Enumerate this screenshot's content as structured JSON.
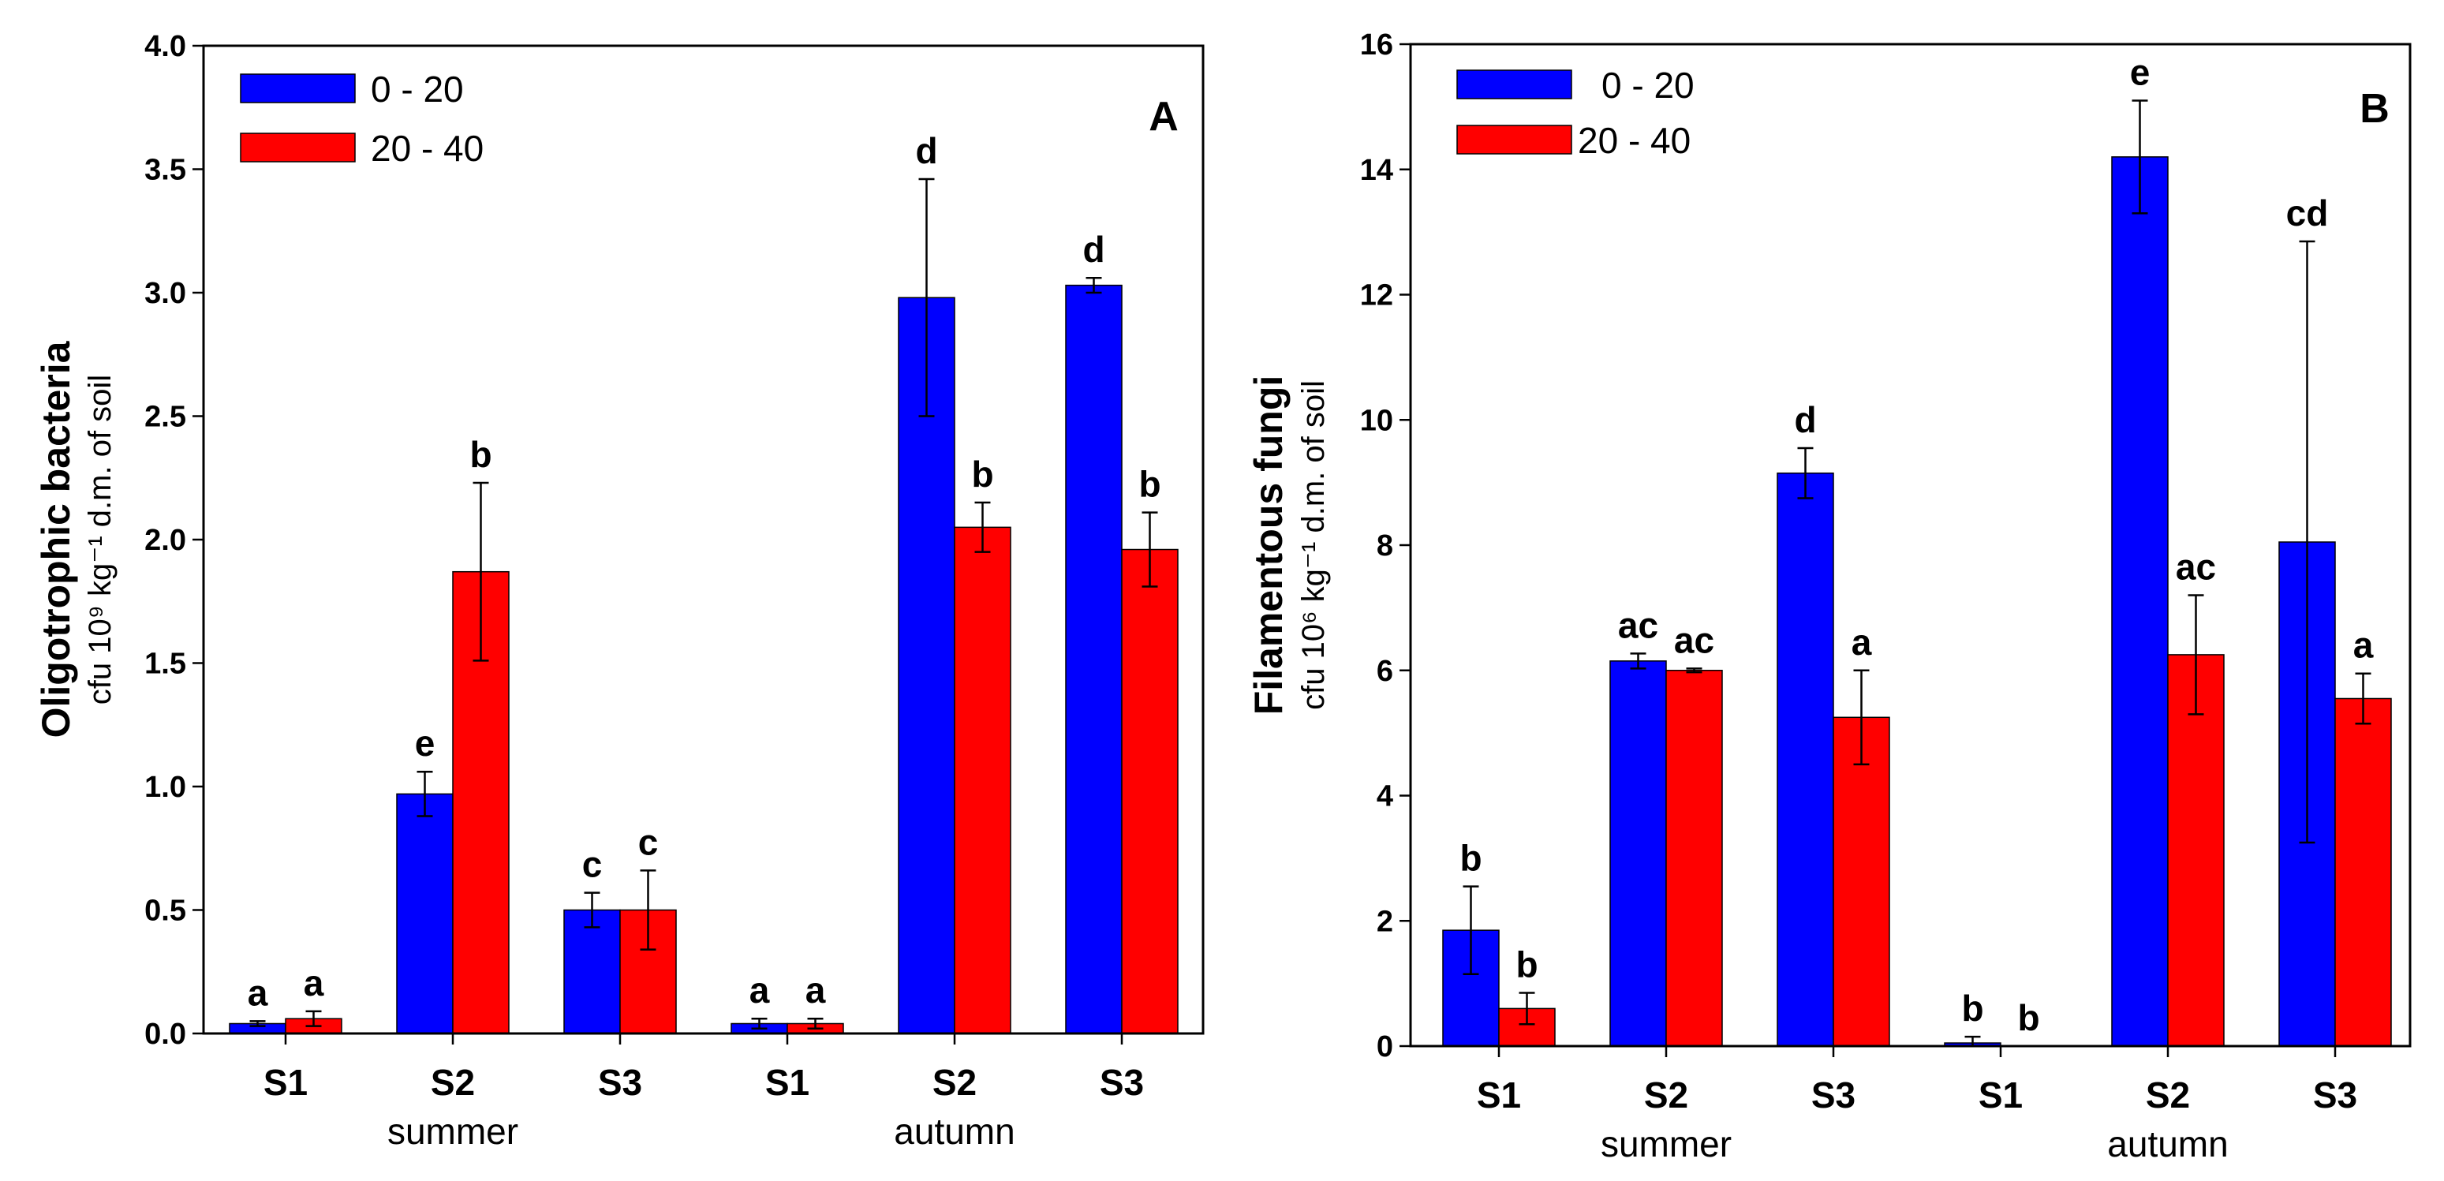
{
  "chart_data": [
    {
      "type": "bar",
      "panel_label": "A",
      "ylabel_main": "Oligotrophic bacteria",
      "ylabel_sub": "cfu 10⁹ kg⁻¹ d.m. of soil",
      "ylim": [
        0,
        4.0
      ],
      "yticks": [
        "0.0",
        "0.5",
        "1.0",
        "1.5",
        "2.0",
        "2.5",
        "3.0",
        "3.5",
        "4.0"
      ],
      "categories": [
        "S1",
        "S2",
        "S3",
        "S1",
        "S2",
        "S3"
      ],
      "seasons": [
        "summer",
        "autumn"
      ],
      "series": [
        {
          "name": "0 - 20",
          "color": "#0000ff",
          "values": [
            0.04,
            0.97,
            0.5,
            0.04,
            2.98,
            3.03
          ],
          "errors": [
            0.01,
            0.09,
            0.07,
            0.02,
            0.48,
            0.03
          ],
          "letters": [
            "a",
            "e",
            "c",
            "a",
            "d",
            "d"
          ]
        },
        {
          "name": "20 - 40",
          "color": "#ff0000",
          "values": [
            0.06,
            1.87,
            0.5,
            0.04,
            2.05,
            1.96
          ],
          "errors": [
            0.03,
            0.36,
            0.16,
            0.02,
            0.1,
            0.15
          ],
          "letters": [
            "a",
            "b",
            "c",
            "a",
            "b",
            "b"
          ]
        }
      ]
    },
    {
      "type": "bar",
      "panel_label": "B",
      "ylabel_main": "Filamentous fungi",
      "ylabel_sub": "cfu 10⁶ kg⁻¹ d.m. of soil",
      "ylim": [
        0,
        16
      ],
      "yticks": [
        "0",
        "2",
        "4",
        "6",
        "8",
        "10",
        "12",
        "14",
        "16"
      ],
      "categories": [
        "S1",
        "S2",
        "S3",
        "S1",
        "S2",
        "S3"
      ],
      "seasons": [
        "summer",
        "autumn"
      ],
      "series": [
        {
          "name": "0 - 20",
          "color": "#0000ff",
          "values": [
            1.85,
            6.15,
            9.15,
            0.05,
            14.2,
            8.05
          ],
          "errors": [
            0.7,
            0.12,
            0.4,
            0.1,
            0.9,
            4.8
          ],
          "letters": [
            "b",
            "ac",
            "d",
            "b",
            "e",
            "cd"
          ]
        },
        {
          "name": "20 - 40",
          "color": "#ff0000",
          "values": [
            0.6,
            6.0,
            5.25,
            0.0,
            6.25,
            5.55
          ],
          "errors": [
            0.25,
            0.03,
            0.75,
            0.0,
            0.95,
            0.4
          ],
          "letters": [
            "b",
            "ac",
            "a",
            "b",
            "ac",
            "a"
          ]
        }
      ]
    }
  ]
}
